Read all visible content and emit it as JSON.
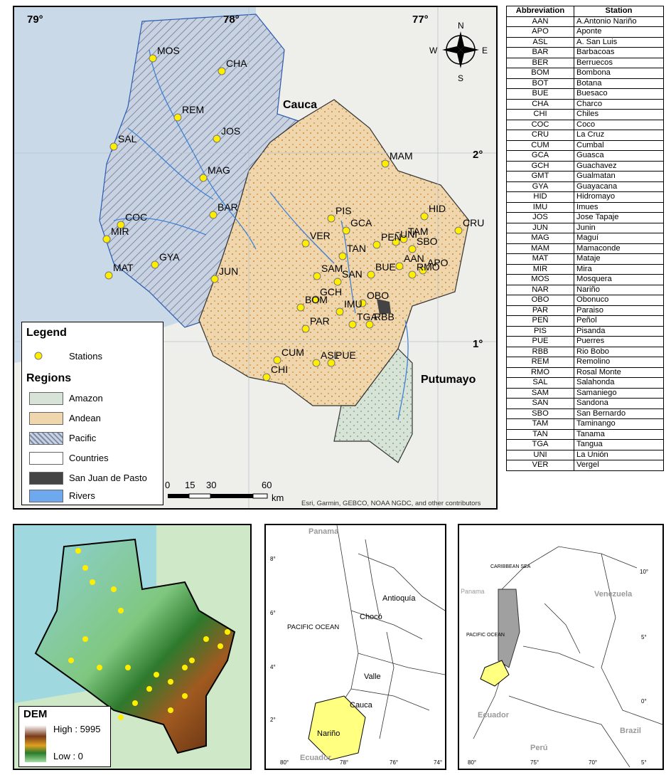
{
  "main_map": {
    "lon_labels": [
      "79°",
      "78°",
      "77°"
    ],
    "lat_labels": [
      "2°",
      "1°"
    ],
    "region_labels": {
      "cauca": "Cauca",
      "putumayo": "Putumayo"
    },
    "compass": {
      "n": "N",
      "s": "S",
      "e": "E",
      "w": "W"
    },
    "stations": [
      "MOS",
      "CHA",
      "REM",
      "JOS",
      "SAL",
      "MAM",
      "MAG",
      "BAR",
      "COC",
      "MIR",
      "PIS",
      "GCA",
      "TAM",
      "HID",
      "CRU",
      "SBO",
      "UNI",
      "VER",
      "PEÑ",
      "APO",
      "AAN",
      "TAN",
      "SAM",
      "SAN",
      "BUE",
      "RMO",
      "JUN",
      "MAT",
      "GYA",
      "GCH",
      "OBO",
      "BOM",
      "IMU",
      "TGA",
      "RBB",
      "PAR",
      "CUM",
      "ASL",
      "PUE",
      "CHI"
    ],
    "scale": {
      "ticks": [
        "0",
        "15",
        "30",
        "60"
      ],
      "unit": "km"
    },
    "attribution": "Esri, Garmin, GEBCO, NOAA NGDC, and other contributors",
    "legend": {
      "title": "Legend",
      "stations_label": "Stations",
      "regions_title": "Regions",
      "items": [
        "Amazon",
        "Andean",
        "Pacific",
        "Countries",
        "San Juan de Pasto",
        "Rivers"
      ]
    }
  },
  "table": {
    "headers": [
      "Abbreviation",
      "Station"
    ],
    "rows": [
      [
        "AAN",
        "A.Antonio Nariño"
      ],
      [
        "APO",
        "Aponte"
      ],
      [
        "ASL",
        "A. San Luis"
      ],
      [
        "BAR",
        "Barbacoas"
      ],
      [
        "BER",
        "Berruecos"
      ],
      [
        "BOM",
        "Bombona"
      ],
      [
        "BOT",
        "Botana"
      ],
      [
        "BUE",
        "Buesaco"
      ],
      [
        "CHA",
        "Charco"
      ],
      [
        "CHI",
        "Chiles"
      ],
      [
        "COC",
        "Coco"
      ],
      [
        "CRU",
        "La Cruz"
      ],
      [
        "CUM",
        "Cumbal"
      ],
      [
        "GCA",
        "Guasca"
      ],
      [
        "GCH",
        "Guachavez"
      ],
      [
        "GMT",
        "Gualmatan"
      ],
      [
        "GYA",
        "Guayacana"
      ],
      [
        "HID",
        "Hidromayo"
      ],
      [
        "IMU",
        "Imues"
      ],
      [
        "JOS",
        "Jose Tapaje"
      ],
      [
        "JUN",
        "Junin"
      ],
      [
        "MAG",
        "Maguí"
      ],
      [
        "MAM",
        "Mamaconde"
      ],
      [
        "MAT",
        "Mataje"
      ],
      [
        "MIR",
        "Mira"
      ],
      [
        "MOS",
        "Mosquera"
      ],
      [
        "NAR",
        "Nariño"
      ],
      [
        "OBO",
        "Obonuco"
      ],
      [
        "PAR",
        "Paraiso"
      ],
      [
        "PEÑ",
        "Peñol"
      ],
      [
        "PIS",
        "Pisanda"
      ],
      [
        "PUE",
        "Puerres"
      ],
      [
        "RBB",
        "Rio Bobo"
      ],
      [
        "REM",
        "Remolino"
      ],
      [
        "RMO",
        "Rosal Monte"
      ],
      [
        "SAL",
        "Salahonda"
      ],
      [
        "SAM",
        "Samaniego"
      ],
      [
        "SAN",
        "Sandona"
      ],
      [
        "SBO",
        "San Bernardo"
      ],
      [
        "TAM",
        "Taminango"
      ],
      [
        "TAN",
        "Tanama"
      ],
      [
        "TGA",
        "Tangua"
      ],
      [
        "UNI",
        "La Unión"
      ],
      [
        "VER",
        "Vergel"
      ]
    ]
  },
  "dem_map": {
    "title": "DEM",
    "high": "High : 5995",
    "low": "Low : 0"
  },
  "context_map_1": {
    "labels": [
      "Panama",
      "Antioquía",
      "Chocó",
      "PACIFIC OCEAN",
      "Valle",
      "Cauca",
      "Nariño",
      "Ecuador"
    ],
    "lat_ticks": [
      "8°",
      "6°",
      "4°",
      "2°"
    ],
    "lon_ticks": [
      "80°",
      "78°",
      "76°",
      "74°"
    ]
  },
  "context_map_2": {
    "labels": [
      "CARIBBEAN SEA",
      "Panama",
      "Venezuela",
      "PACIFIC OCEAN",
      "Ecuador",
      "Perú",
      "Brazil"
    ],
    "lat_ticks": [
      "10°",
      "5°",
      "0°",
      "5°"
    ],
    "lon_ticks": [
      "80°",
      "75°",
      "70°"
    ]
  },
  "colors": {
    "pacific": "#c9d2e0",
    "andean": "#eed3a8",
    "amazon": "#d6e2d8",
    "station": "#ffee00",
    "river": "#3f82d6",
    "pasto": "#444444",
    "narino": "#ffff80"
  }
}
